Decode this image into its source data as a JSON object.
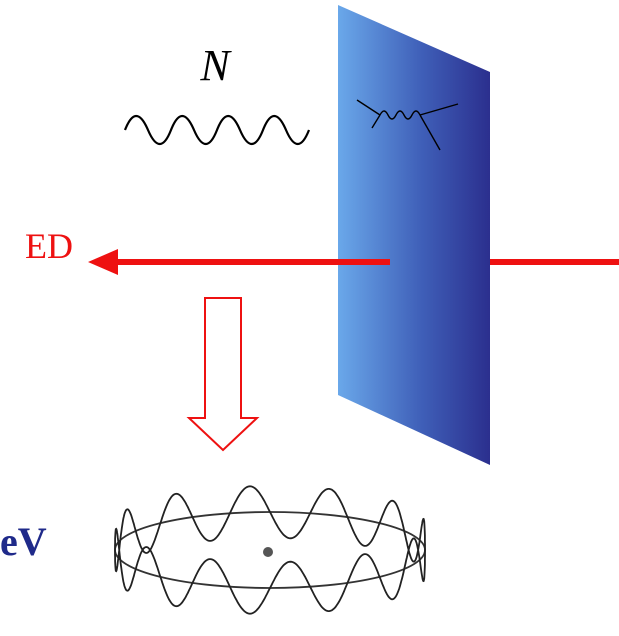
{
  "labels": {
    "particle": "N",
    "left": "ED",
    "bottom": "eV"
  }
}
